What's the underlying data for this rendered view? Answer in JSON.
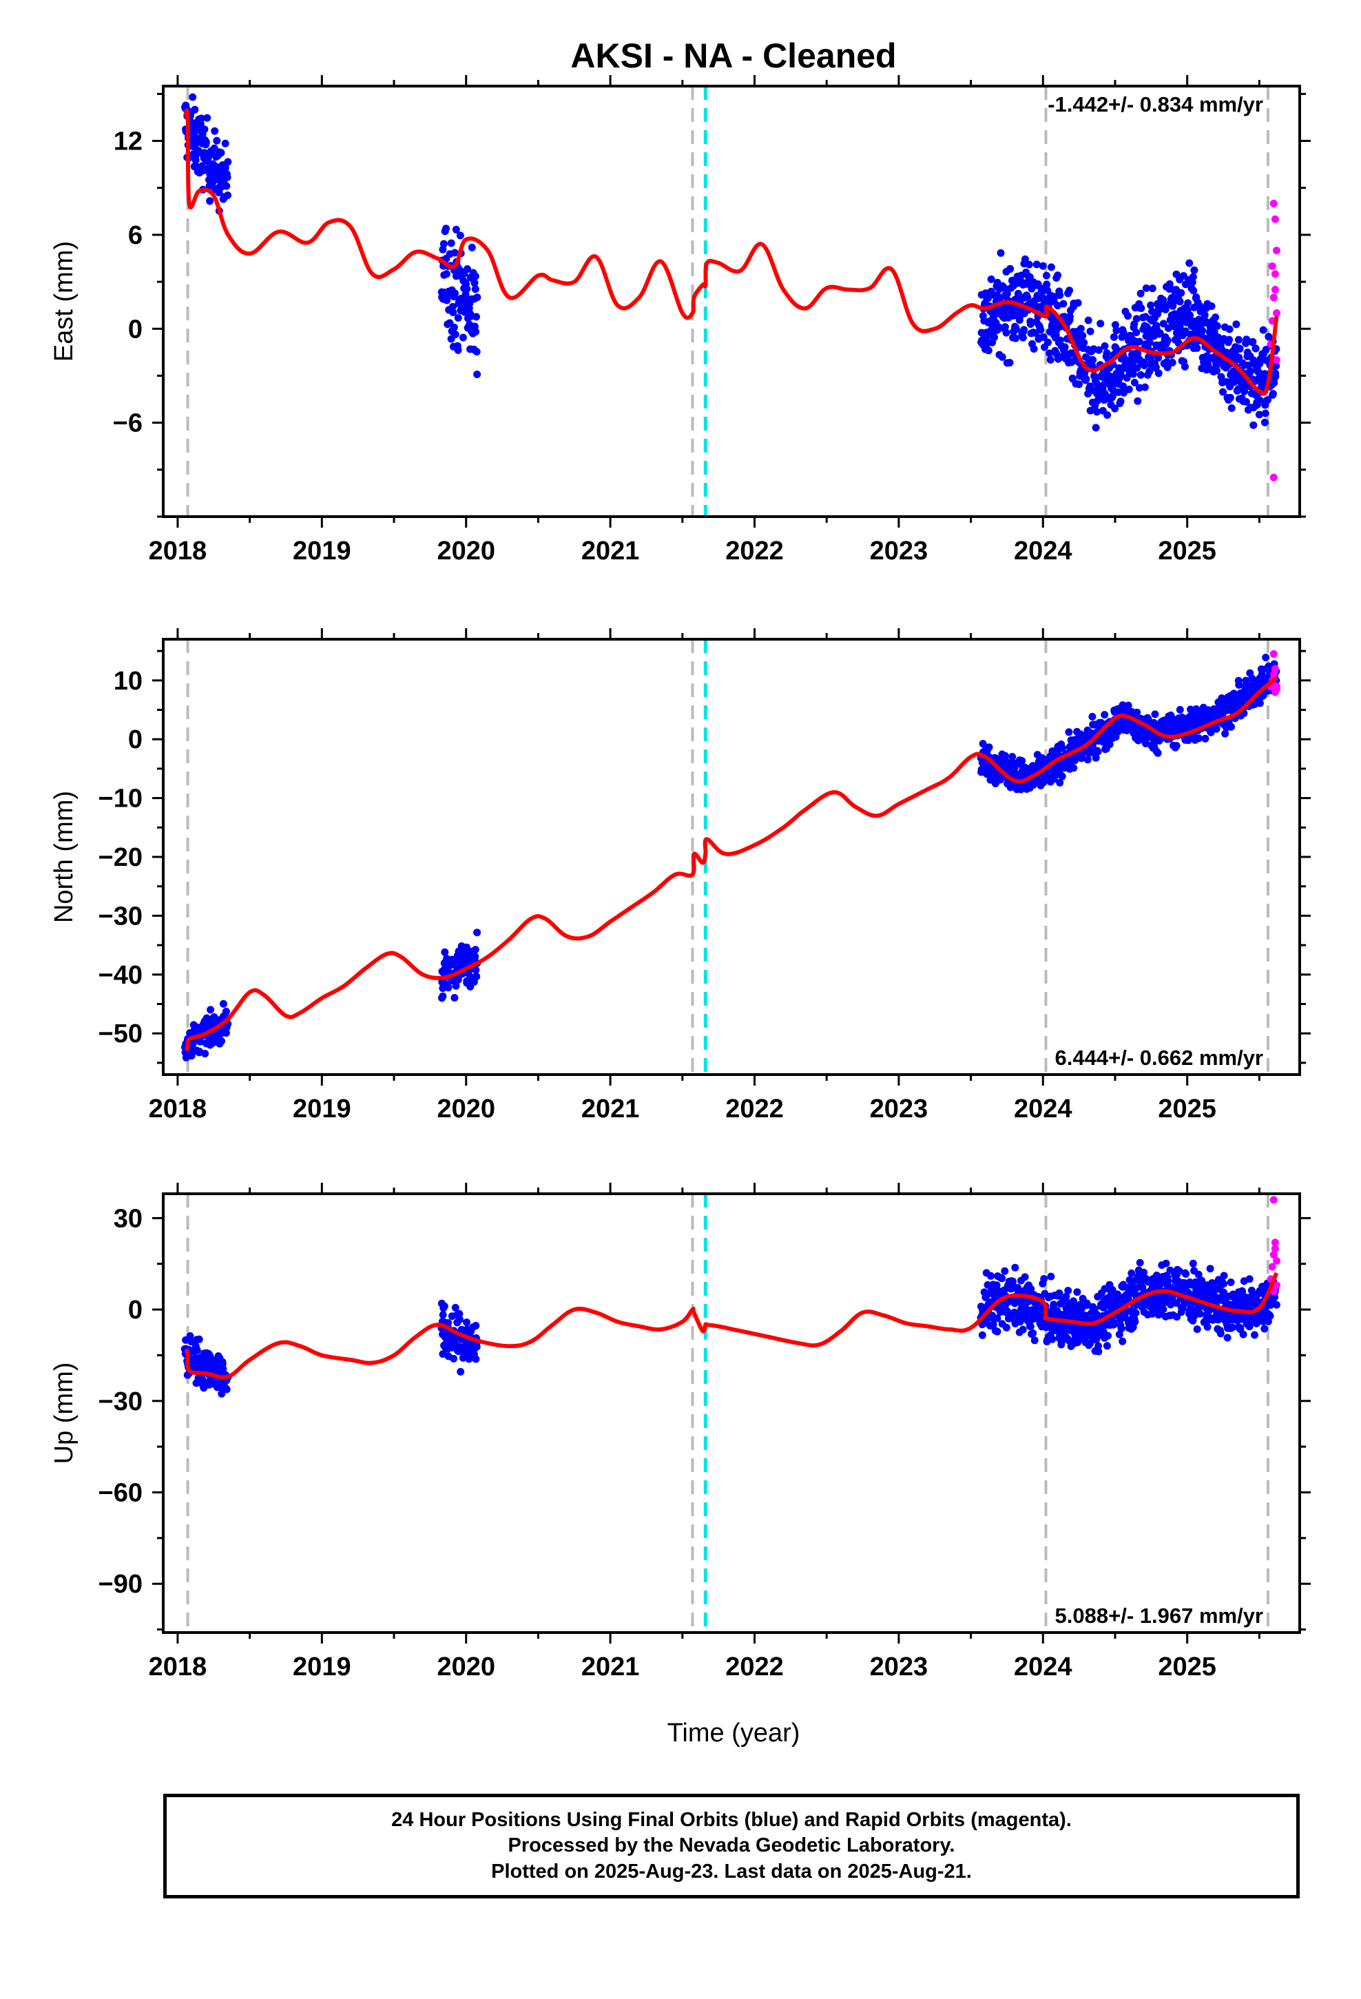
{
  "title": "AKSI  - NA - Cleaned",
  "xlabel": "Time (year)",
  "colors": {
    "final_orbits": "#0000ff",
    "rapid_orbits": "#ff00ff",
    "model": "#ff0000",
    "equipment_change": "#bbbbbb",
    "earthquake": "#00e5e5",
    "frame": "#000000"
  },
  "footer": {
    "line1": "24 Hour Positions Using Final Orbits (blue) and Rapid Orbits (magenta).",
    "line2": "Processed by the Nevada Geodetic Laboratory.",
    "line3": "Plotted on 2025-Aug-23. Last data on 2025-Aug-21."
  },
  "chart_data": [
    {
      "type": "scatter",
      "component": "East",
      "ylabel": "East (mm)",
      "rate_label": "-1.442+/- 0.834 mm/yr",
      "xlim": [
        2017.9,
        2025.78
      ],
      "ylim": [
        -12,
        15.5
      ],
      "yticks": [
        -6,
        0,
        6,
        12
      ],
      "xticks": [
        2018,
        2019,
        2020,
        2021,
        2022,
        2023,
        2024,
        2025
      ],
      "gray_dashed_lines_x": [
        2018.07,
        2021.57,
        2024.02,
        2025.56
      ],
      "cyan_dashed_lines_x": [
        2021.66
      ],
      "series": [
        {
          "name": "Final Orbits",
          "color": "#0000ff",
          "segments": [
            {
              "x_start": 2018.05,
              "x_end": 2018.35,
              "trend": [
                [
                  2018.05,
                  13.0
                ],
                [
                  2018.35,
                  9.0
                ]
              ],
              "spread": 2.2
            },
            {
              "x_start": 2019.83,
              "x_end": 2020.08,
              "trend": [
                [
                  2019.83,
                  3.8
                ],
                [
                  2020.08,
                  1.0
                ]
              ],
              "spread": 3.5
            },
            {
              "x_start": 2023.57,
              "x_end": 2025.62,
              "trend": [
                [
                  2023.57,
                  0.5
                ],
                [
                  2023.9,
                  2.0
                ],
                [
                  2024.1,
                  0.5
                ],
                [
                  2024.35,
                  -3.5
                ],
                [
                  2024.6,
                  -1.8
                ],
                [
                  2024.85,
                  0.2
                ],
                [
                  2025.05,
                  1.2
                ],
                [
                  2025.2,
                  -1.5
                ],
                [
                  2025.5,
                  -3.5
                ],
                [
                  2025.62,
                  -2.5
                ]
              ],
              "spread": 2.8
            }
          ]
        },
        {
          "name": "Rapid Orbits",
          "color": "#ff00ff",
          "x": [
            2025.58,
            2025.59,
            2025.6,
            2025.61,
            2025.62,
            2025.6,
            2025.61,
            2025.59,
            2025.62,
            2025.6,
            2025.61,
            2025.62
          ],
          "y": [
            -1.0,
            0.5,
            2.0,
            3.5,
            5.0,
            8.0,
            7.0,
            4.0,
            1.0,
            -9.5,
            2.5,
            -2.0
          ]
        },
        {
          "name": "Model",
          "color": "#ff0000",
          "x": [
            2018.05,
            2018.07,
            2018.08,
            2018.15,
            2018.25,
            2018.35,
            2018.5,
            2018.7,
            2018.9,
            2019.05,
            2019.2,
            2019.35,
            2019.5,
            2019.65,
            2019.8,
            2019.92,
            2020.0,
            2020.15,
            2020.3,
            2020.5,
            2020.6,
            2020.75,
            2020.9,
            2021.05,
            2021.2,
            2021.35,
            2021.5,
            2021.57,
            2021.58,
            2021.64,
            2021.66,
            2021.67,
            2021.75,
            2021.9,
            2022.05,
            2022.2,
            2022.35,
            2022.5,
            2022.65,
            2022.8,
            2022.95,
            2023.1,
            2023.25,
            2023.4,
            2023.5,
            2023.6,
            2023.75,
            2023.9,
            2024.02,
            2024.03,
            2024.15,
            2024.3,
            2024.45,
            2024.6,
            2024.75,
            2024.9,
            2025.05,
            2025.2,
            2025.35,
            2025.5,
            2025.56,
            2025.62
          ],
          "y": [
            13.5,
            13.5,
            8.0,
            8.8,
            8.5,
            6.0,
            4.8,
            6.2,
            5.5,
            6.8,
            6.5,
            3.5,
            3.8,
            4.9,
            4.5,
            4.0,
            5.7,
            5.0,
            2.0,
            3.4,
            3.1,
            3.0,
            4.6,
            1.5,
            2.0,
            4.3,
            1.0,
            1.0,
            2.0,
            2.8,
            2.8,
            4.2,
            4.2,
            3.7,
            5.4,
            2.5,
            1.3,
            2.6,
            2.5,
            2.6,
            3.8,
            0.3,
            0.0,
            1.0,
            1.5,
            1.3,
            1.7,
            1.3,
            0.8,
            1.4,
            0.2,
            -2.5,
            -2.2,
            -1.2,
            -1.5,
            -1.5,
            -0.6,
            -1.5,
            -2.5,
            -4.0,
            -3.5,
            0.8
          ]
        }
      ]
    },
    {
      "type": "scatter",
      "component": "North",
      "ylabel": "North (mm)",
      "rate_label": "6.444+/- 0.662 mm/yr",
      "xlim": [
        2017.9,
        2025.78
      ],
      "ylim": [
        -57,
        17
      ],
      "yticks": [
        -50,
        -40,
        -30,
        -20,
        -10,
        0,
        10
      ],
      "xticks": [
        2018,
        2019,
        2020,
        2021,
        2022,
        2023,
        2024,
        2025
      ],
      "gray_dashed_lines_x": [
        2018.07,
        2021.57,
        2024.02,
        2025.56
      ],
      "cyan_dashed_lines_x": [
        2021.66
      ],
      "series": [
        {
          "name": "Final Orbits",
          "color": "#0000ff",
          "segments": [
            {
              "x_start": 2018.05,
              "x_end": 2018.35,
              "trend": [
                [
                  2018.05,
                  -52.0
                ],
                [
                  2018.35,
                  -48.0
                ]
              ],
              "spread": 2.5
            },
            {
              "x_start": 2019.83,
              "x_end": 2020.08,
              "trend": [
                [
                  2019.83,
                  -41.0
                ],
                [
                  2020.08,
                  -37.0
                ]
              ],
              "spread": 3.5
            },
            {
              "x_start": 2023.57,
              "x_end": 2025.62,
              "trend": [
                [
                  2023.57,
                  -3.0
                ],
                [
                  2023.9,
                  -7.0
                ],
                [
                  2024.1,
                  -4.0
                ],
                [
                  2024.35,
                  0.0
                ],
                [
                  2024.55,
                  3.5
                ],
                [
                  2024.75,
                  1.0
                ],
                [
                  2025.0,
                  2.0
                ],
                [
                  2025.3,
                  5.0
                ],
                [
                  2025.55,
                  10.0
                ],
                [
                  2025.62,
                  11.0
                ]
              ],
              "spread": 2.8
            }
          ]
        },
        {
          "name": "Rapid Orbits",
          "color": "#ff00ff",
          "x": [
            2025.58,
            2025.59,
            2025.6,
            2025.61,
            2025.62,
            2025.6,
            2025.61,
            2025.62
          ],
          "y": [
            9.0,
            10.0,
            11.0,
            8.0,
            9.0,
            14.5,
            12.0,
            8.5
          ]
        },
        {
          "name": "Model",
          "color": "#ff0000",
          "x": [
            2018.05,
            2018.07,
            2018.08,
            2018.2,
            2018.35,
            2018.5,
            2018.6,
            2018.75,
            2018.85,
            2019.0,
            2019.15,
            2019.3,
            2019.45,
            2019.55,
            2019.7,
            2019.85,
            2020.0,
            2020.15,
            2020.3,
            2020.45,
            2020.55,
            2020.7,
            2020.85,
            2021.0,
            2021.15,
            2021.3,
            2021.45,
            2021.57,
            2021.58,
            2021.64,
            2021.66,
            2021.67,
            2021.8,
            2022.0,
            2022.2,
            2022.35,
            2022.55,
            2022.7,
            2022.85,
            2023.0,
            2023.2,
            2023.35,
            2023.5,
            2023.6,
            2023.8,
            2023.95,
            2024.1,
            2024.3,
            2024.45,
            2024.55,
            2024.7,
            2024.85,
            2025.0,
            2025.2,
            2025.35,
            2025.5,
            2025.62
          ],
          "y": [
            -52.5,
            -52.5,
            -51.0,
            -50.0,
            -47.5,
            -43.0,
            -43.5,
            -47.0,
            -46.5,
            -44.0,
            -42.0,
            -39.0,
            -36.5,
            -37.0,
            -40.0,
            -40.5,
            -39.0,
            -37.0,
            -34.0,
            -30.5,
            -30.5,
            -33.5,
            -33.5,
            -31.0,
            -28.5,
            -26.0,
            -23.0,
            -23.0,
            -19.5,
            -21.0,
            -19.5,
            -17.0,
            -19.5,
            -18.0,
            -15.0,
            -12.0,
            -9.0,
            -11.5,
            -13.0,
            -11.0,
            -8.5,
            -6.5,
            -3.0,
            -3.0,
            -7.0,
            -6.0,
            -3.5,
            -1.0,
            2.5,
            4.0,
            2.5,
            0.5,
            1.0,
            3.0,
            4.5,
            8.0,
            10.5
          ]
        }
      ]
    },
    {
      "type": "scatter",
      "component": "Up",
      "ylabel": "Up (mm)",
      "rate_label": "5.088+/- 1.967 mm/yr",
      "xlim": [
        2017.9,
        2025.78
      ],
      "ylim": [
        -106,
        38
      ],
      "yticks": [
        -90,
        -60,
        -30,
        0,
        30
      ],
      "xticks": [
        2018,
        2019,
        2020,
        2021,
        2022,
        2023,
        2024,
        2025
      ],
      "gray_dashed_lines_x": [
        2018.07,
        2021.57,
        2024.02,
        2025.56
      ],
      "cyan_dashed_lines_x": [
        2021.66
      ],
      "series": [
        {
          "name": "Final Orbits",
          "color": "#0000ff",
          "segments": [
            {
              "x_start": 2018.05,
              "x_end": 2018.35,
              "trend": [
                [
                  2018.05,
                  -15.0
                ],
                [
                  2018.35,
                  -22.0
                ]
              ],
              "spread": 7
            },
            {
              "x_start": 2019.83,
              "x_end": 2020.08,
              "trend": [
                [
                  2019.83,
                  -8.0
                ],
                [
                  2020.08,
                  -12.0
                ]
              ],
              "spread": 9
            },
            {
              "x_start": 2023.57,
              "x_end": 2025.62,
              "trend": [
                [
                  2023.57,
                  0.0
                ],
                [
                  2023.75,
                  4.0
                ],
                [
                  2024.0,
                  -2.0
                ],
                [
                  2024.2,
                  -4.0
                ],
                [
                  2024.4,
                  -3.0
                ],
                [
                  2024.7,
                  6.0
                ],
                [
                  2025.0,
                  5.0
                ],
                [
                  2025.3,
                  0.0
                ],
                [
                  2025.5,
                  1.0
                ],
                [
                  2025.62,
                  6.0
                ]
              ],
              "spread": 9
            }
          ]
        },
        {
          "name": "Rapid Orbits",
          "color": "#ff00ff",
          "x": [
            2025.58,
            2025.59,
            2025.6,
            2025.61,
            2025.62,
            2025.6,
            2025.61,
            2025.62,
            2025.6
          ],
          "y": [
            10.0,
            14.0,
            18.0,
            22.0,
            8.0,
            36.0,
            20.0,
            16.0,
            6.0
          ]
        },
        {
          "name": "Model",
          "color": "#ff0000",
          "x": [
            2018.05,
            2018.07,
            2018.08,
            2018.2,
            2018.35,
            2018.5,
            2018.7,
            2018.85,
            2019.0,
            2019.2,
            2019.35,
            2019.5,
            2019.65,
            2019.8,
            2019.95,
            2020.1,
            2020.3,
            2020.45,
            2020.6,
            2020.75,
            2020.9,
            2021.05,
            2021.2,
            2021.35,
            2021.5,
            2021.57,
            2021.58,
            2021.64,
            2021.66,
            2021.67,
            2021.75,
            2021.9,
            2022.1,
            2022.3,
            2022.45,
            2022.6,
            2022.75,
            2022.9,
            2023.05,
            2023.2,
            2023.35,
            2023.5,
            2023.7,
            2023.85,
            2024.0,
            2024.02,
            2024.03,
            2024.2,
            2024.35,
            2024.5,
            2024.7,
            2024.85,
            2025.0,
            2025.2,
            2025.35,
            2025.5,
            2025.62
          ],
          "y": [
            -14.0,
            -14.0,
            -20.0,
            -21.0,
            -22.0,
            -16.5,
            -11.0,
            -12.0,
            -15.0,
            -16.5,
            -17.5,
            -15.0,
            -9.0,
            -5.0,
            -8.0,
            -10.5,
            -12.0,
            -10.5,
            -5.0,
            0.0,
            -1.0,
            -4.0,
            -5.5,
            -6.5,
            -4.0,
            0.0,
            -1.0,
            -7.0,
            -5.0,
            -5.0,
            -5.5,
            -7.0,
            -9.0,
            -11.0,
            -11.5,
            -7.0,
            -1.0,
            -2.0,
            -4.5,
            -5.5,
            -6.5,
            -6.0,
            3.0,
            4.5,
            2.5,
            -2.0,
            -3.0,
            -4.0,
            -4.5,
            -1.0,
            4.5,
            6.0,
            4.0,
            1.0,
            -0.5,
            0.5,
            12.0
          ]
        }
      ]
    }
  ]
}
